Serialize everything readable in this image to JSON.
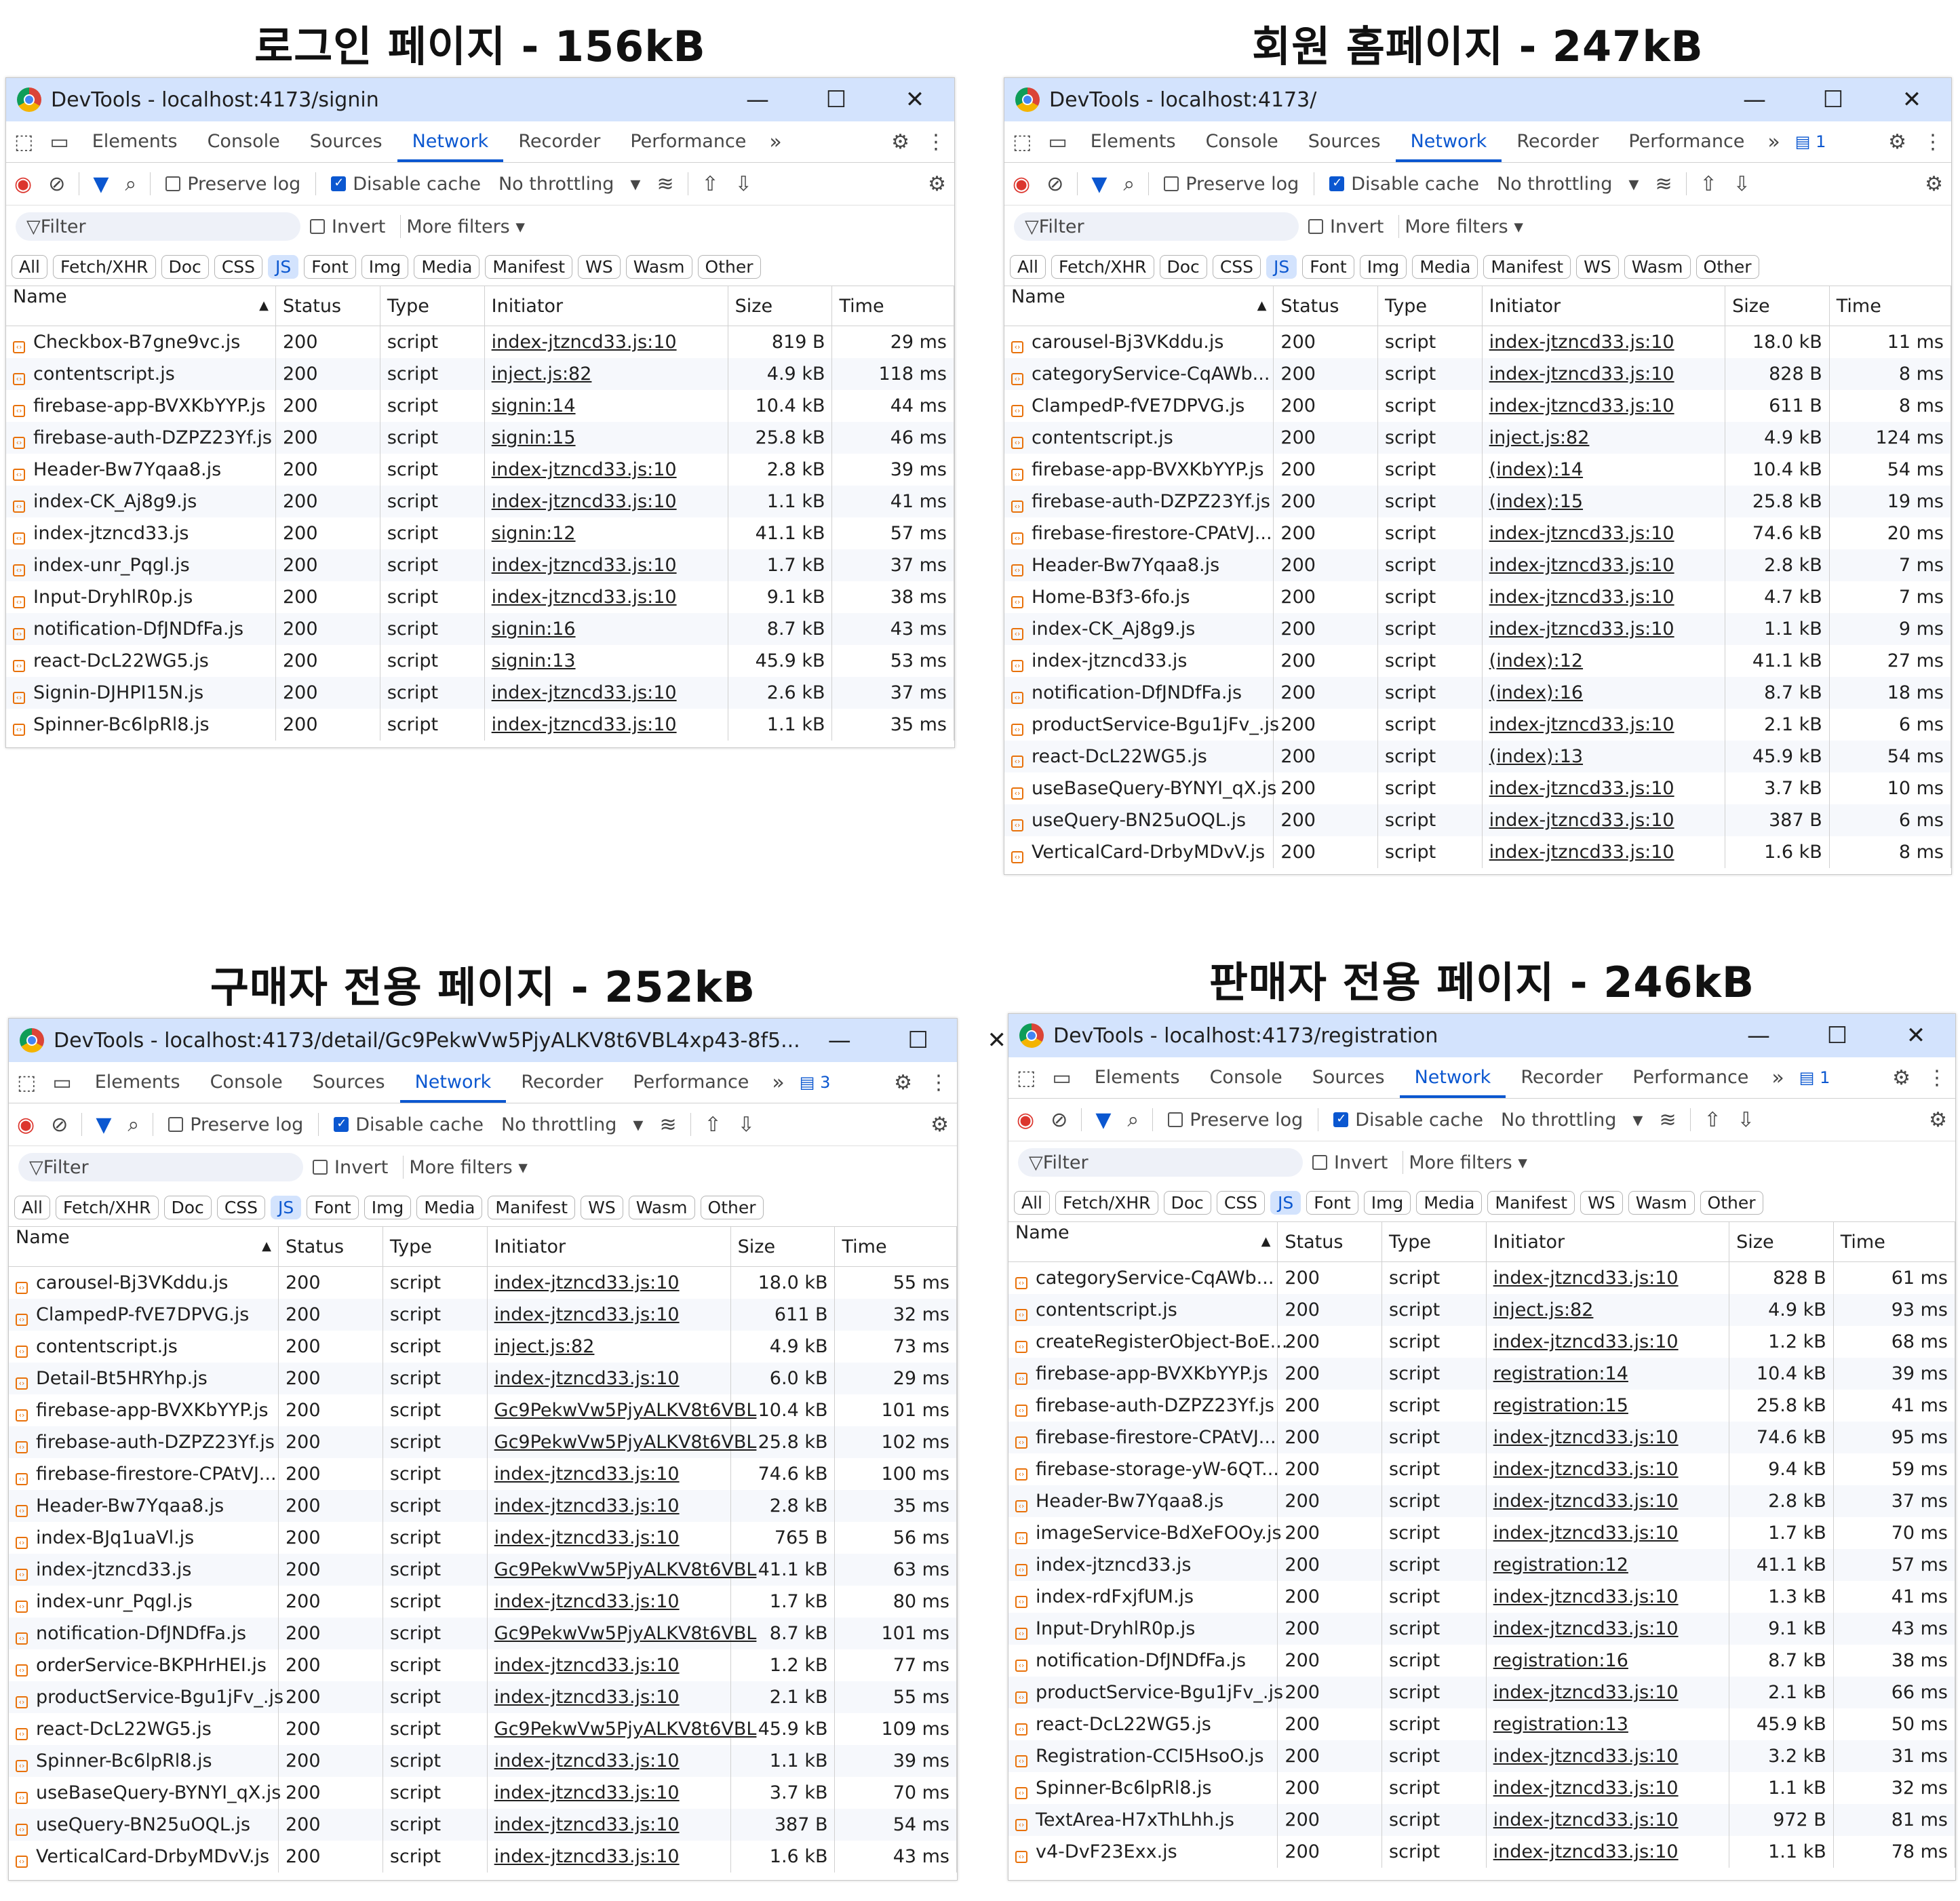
{
  "panels": [
    {
      "heading": "로그인 페이지 - 156kB",
      "window_title": "DevTools - localhost:4173/signin",
      "tabs": [
        "Elements",
        "Console",
        "Sources",
        "Network",
        "Recorder",
        "Performance"
      ],
      "active_tab": "Network",
      "badge": "",
      "toolbar": {
        "preserve_log": "Preserve log",
        "disable_cache": "Disable cache",
        "throttling": "No throttling"
      },
      "filter": {
        "placeholder": "Filter",
        "invert": "Invert",
        "more_filters": "More filters"
      },
      "chips": [
        "All",
        "Fetch/XHR",
        "Doc",
        "CSS",
        "JS",
        "Font",
        "Img",
        "Media",
        "Manifest",
        "WS",
        "Wasm",
        "Other"
      ],
      "active_chip": "JS",
      "columns": [
        "Name",
        "Status",
        "Type",
        "Initiator",
        "Size",
        "Time"
      ],
      "rows": [
        [
          "Checkbox-B7gne9vc.js",
          "200",
          "script",
          "index-jtzncd33.js:10",
          "819 B",
          "29 ms"
        ],
        [
          "contentscript.js",
          "200",
          "script",
          "inject.js:82",
          "4.9 kB",
          "118 ms"
        ],
        [
          "firebase-app-BVXKbYYP.js",
          "200",
          "script",
          "signin:14",
          "10.4 kB",
          "44 ms"
        ],
        [
          "firebase-auth-DZPZ23Yf.js",
          "200",
          "script",
          "signin:15",
          "25.8 kB",
          "46 ms"
        ],
        [
          "Header-Bw7Yqaa8.js",
          "200",
          "script",
          "index-jtzncd33.js:10",
          "2.8 kB",
          "39 ms"
        ],
        [
          "index-CK_Aj8g9.js",
          "200",
          "script",
          "index-jtzncd33.js:10",
          "1.1 kB",
          "41 ms"
        ],
        [
          "index-jtzncd33.js",
          "200",
          "script",
          "signin:12",
          "41.1 kB",
          "57 ms"
        ],
        [
          "index-unr_Pqgl.js",
          "200",
          "script",
          "index-jtzncd33.js:10",
          "1.7 kB",
          "37 ms"
        ],
        [
          "Input-DryhlR0p.js",
          "200",
          "script",
          "index-jtzncd33.js:10",
          "9.1 kB",
          "38 ms"
        ],
        [
          "notification-DfJNDfFa.js",
          "200",
          "script",
          "signin:16",
          "8.7 kB",
          "43 ms"
        ],
        [
          "react-DcL22WG5.js",
          "200",
          "script",
          "signin:13",
          "45.9 kB",
          "53 ms"
        ],
        [
          "Signin-DJHPI15N.js",
          "200",
          "script",
          "index-jtzncd33.js:10",
          "2.6 kB",
          "37 ms"
        ],
        [
          "Spinner-Bc6lpRl8.js",
          "200",
          "script",
          "index-jtzncd33.js:10",
          "1.1 kB",
          "35 ms"
        ]
      ]
    },
    {
      "heading": "회원 홈페이지 - 247kB",
      "window_title": "DevTools - localhost:4173/",
      "tabs": [
        "Elements",
        "Console",
        "Sources",
        "Network",
        "Recorder",
        "Performance"
      ],
      "active_tab": "Network",
      "badge": "1",
      "toolbar": {
        "preserve_log": "Preserve log",
        "disable_cache": "Disable cache",
        "throttling": "No throttling"
      },
      "filter": {
        "placeholder": "Filter",
        "invert": "Invert",
        "more_filters": "More filters"
      },
      "chips": [
        "All",
        "Fetch/XHR",
        "Doc",
        "CSS",
        "JS",
        "Font",
        "Img",
        "Media",
        "Manifest",
        "WS",
        "Wasm",
        "Other"
      ],
      "active_chip": "JS",
      "columns": [
        "Name",
        "Status",
        "Type",
        "Initiator",
        "Size",
        "Time"
      ],
      "rows": [
        [
          "carousel-Bj3VKddu.js",
          "200",
          "script",
          "index-jtzncd33.js:10",
          "18.0 kB",
          "11 ms"
        ],
        [
          "categoryService-CqAWb...",
          "200",
          "script",
          "index-jtzncd33.js:10",
          "828 B",
          "8 ms"
        ],
        [
          "ClampedP-fVE7DPVG.js",
          "200",
          "script",
          "index-jtzncd33.js:10",
          "611 B",
          "8 ms"
        ],
        [
          "contentscript.js",
          "200",
          "script",
          "inject.js:82",
          "4.9 kB",
          "124 ms"
        ],
        [
          "firebase-app-BVXKbYYP.js",
          "200",
          "script",
          "(index):14",
          "10.4 kB",
          "54 ms"
        ],
        [
          "firebase-auth-DZPZ23Yf.js",
          "200",
          "script",
          "(index):15",
          "25.8 kB",
          "19 ms"
        ],
        [
          "firebase-firestore-CPAtVJ...",
          "200",
          "script",
          "index-jtzncd33.js:10",
          "74.6 kB",
          "20 ms"
        ],
        [
          "Header-Bw7Yqaa8.js",
          "200",
          "script",
          "index-jtzncd33.js:10",
          "2.8 kB",
          "7 ms"
        ],
        [
          "Home-B3f3-6fo.js",
          "200",
          "script",
          "index-jtzncd33.js:10",
          "4.7 kB",
          "7 ms"
        ],
        [
          "index-CK_Aj8g9.js",
          "200",
          "script",
          "index-jtzncd33.js:10",
          "1.1 kB",
          "9 ms"
        ],
        [
          "index-jtzncd33.js",
          "200",
          "script",
          "(index):12",
          "41.1 kB",
          "27 ms"
        ],
        [
          "notification-DfJNDfFa.js",
          "200",
          "script",
          "(index):16",
          "8.7 kB",
          "18 ms"
        ],
        [
          "productService-Bgu1jFv_.js",
          "200",
          "script",
          "index-jtzncd33.js:10",
          "2.1 kB",
          "6 ms"
        ],
        [
          "react-DcL22WG5.js",
          "200",
          "script",
          "(index):13",
          "45.9 kB",
          "54 ms"
        ],
        [
          "useBaseQuery-BYNYI_qX.js",
          "200",
          "script",
          "index-jtzncd33.js:10",
          "3.7 kB",
          "10 ms"
        ],
        [
          "useQuery-BN25uOQL.js",
          "200",
          "script",
          "index-jtzncd33.js:10",
          "387 B",
          "6 ms"
        ],
        [
          "VerticalCard-DrbyMDvV.js",
          "200",
          "script",
          "index-jtzncd33.js:10",
          "1.6 kB",
          "8 ms"
        ]
      ]
    },
    {
      "heading": "구매자 전용 페이지 - 252kB",
      "window_title": "DevTools - localhost:4173/detail/Gc9PekwVw5PjyALKV8t6VBL4xp43-8f5...",
      "tabs": [
        "Elements",
        "Console",
        "Sources",
        "Network",
        "Recorder",
        "Performance"
      ],
      "active_tab": "Network",
      "badge": "3",
      "toolbar": {
        "preserve_log": "Preserve log",
        "disable_cache": "Disable cache",
        "throttling": "No throttling"
      },
      "filter": {
        "placeholder": "Filter",
        "invert": "Invert",
        "more_filters": "More filters"
      },
      "chips": [
        "All",
        "Fetch/XHR",
        "Doc",
        "CSS",
        "JS",
        "Font",
        "Img",
        "Media",
        "Manifest",
        "WS",
        "Wasm",
        "Other"
      ],
      "active_chip": "JS",
      "columns": [
        "Name",
        "Status",
        "Type",
        "Initiator",
        "Size",
        "Time"
      ],
      "rows": [
        [
          "carousel-Bj3VKddu.js",
          "200",
          "script",
          "index-jtzncd33.js:10",
          "18.0 kB",
          "55 ms"
        ],
        [
          "ClampedP-fVE7DPVG.js",
          "200",
          "script",
          "index-jtzncd33.js:10",
          "611 B",
          "32 ms"
        ],
        [
          "contentscript.js",
          "200",
          "script",
          "inject.js:82",
          "4.9 kB",
          "73 ms"
        ],
        [
          "Detail-Bt5HRYhp.js",
          "200",
          "script",
          "index-jtzncd33.js:10",
          "6.0 kB",
          "29 ms"
        ],
        [
          "firebase-app-BVXKbYYP.js",
          "200",
          "script",
          "Gc9PekwVw5PjyALKV8t6VBL",
          "10.4 kB",
          "101 ms"
        ],
        [
          "firebase-auth-DZPZ23Yf.js",
          "200",
          "script",
          "Gc9PekwVw5PjyALKV8t6VBL",
          "25.8 kB",
          "102 ms"
        ],
        [
          "firebase-firestore-CPAtVJ...",
          "200",
          "script",
          "index-jtzncd33.js:10",
          "74.6 kB",
          "100 ms"
        ],
        [
          "Header-Bw7Yqaa8.js",
          "200",
          "script",
          "index-jtzncd33.js:10",
          "2.8 kB",
          "35 ms"
        ],
        [
          "index-BJq1uaVl.js",
          "200",
          "script",
          "index-jtzncd33.js:10",
          "765 B",
          "56 ms"
        ],
        [
          "index-jtzncd33.js",
          "200",
          "script",
          "Gc9PekwVw5PjyALKV8t6VBL",
          "41.1 kB",
          "63 ms"
        ],
        [
          "index-unr_Pqgl.js",
          "200",
          "script",
          "index-jtzncd33.js:10",
          "1.7 kB",
          "80 ms"
        ],
        [
          "notification-DfJNDfFa.js",
          "200",
          "script",
          "Gc9PekwVw5PjyALKV8t6VBL",
          "8.7 kB",
          "101 ms"
        ],
        [
          "orderService-BKPHrHEI.js",
          "200",
          "script",
          "index-jtzncd33.js:10",
          "1.2 kB",
          "77 ms"
        ],
        [
          "productService-Bgu1jFv_.js",
          "200",
          "script",
          "index-jtzncd33.js:10",
          "2.1 kB",
          "55 ms"
        ],
        [
          "react-DcL22WG5.js",
          "200",
          "script",
          "Gc9PekwVw5PjyALKV8t6VBL",
          "45.9 kB",
          "109 ms"
        ],
        [
          "Spinner-Bc6lpRl8.js",
          "200",
          "script",
          "index-jtzncd33.js:10",
          "1.1 kB",
          "39 ms"
        ],
        [
          "useBaseQuery-BYNYI_qX.js",
          "200",
          "script",
          "index-jtzncd33.js:10",
          "3.7 kB",
          "70 ms"
        ],
        [
          "useQuery-BN25uOQL.js",
          "200",
          "script",
          "index-jtzncd33.js:10",
          "387 B",
          "54 ms"
        ],
        [
          "VerticalCard-DrbyMDvV.js",
          "200",
          "script",
          "index-jtzncd33.js:10",
          "1.6 kB",
          "43 ms"
        ]
      ]
    },
    {
      "heading": "판매자 전용 페이지 - 246kB",
      "window_title": "DevTools - localhost:4173/registration",
      "tabs": [
        "Elements",
        "Console",
        "Sources",
        "Network",
        "Recorder",
        "Performance"
      ],
      "active_tab": "Network",
      "badge": "1",
      "toolbar": {
        "preserve_log": "Preserve log",
        "disable_cache": "Disable cache",
        "throttling": "No throttling"
      },
      "filter": {
        "placeholder": "Filter",
        "invert": "Invert",
        "more_filters": "More filters"
      },
      "chips": [
        "All",
        "Fetch/XHR",
        "Doc",
        "CSS",
        "JS",
        "Font",
        "Img",
        "Media",
        "Manifest",
        "WS",
        "Wasm",
        "Other"
      ],
      "active_chip": "JS",
      "columns": [
        "Name",
        "Status",
        "Type",
        "Initiator",
        "Size",
        "Time"
      ],
      "rows": [
        [
          "categoryService-CqAWb...",
          "200",
          "script",
          "index-jtzncd33.js:10",
          "828 B",
          "61 ms"
        ],
        [
          "contentscript.js",
          "200",
          "script",
          "inject.js:82",
          "4.9 kB",
          "93 ms"
        ],
        [
          "createRegisterObject-BoE...",
          "200",
          "script",
          "index-jtzncd33.js:10",
          "1.2 kB",
          "68 ms"
        ],
        [
          "firebase-app-BVXKbYYP.js",
          "200",
          "script",
          "registration:14",
          "10.4 kB",
          "39 ms"
        ],
        [
          "firebase-auth-DZPZ23Yf.js",
          "200",
          "script",
          "registration:15",
          "25.8 kB",
          "41 ms"
        ],
        [
          "firebase-firestore-CPAtVJ...",
          "200",
          "script",
          "index-jtzncd33.js:10",
          "74.6 kB",
          "95 ms"
        ],
        [
          "firebase-storage-yW-6QT...",
          "200",
          "script",
          "index-jtzncd33.js:10",
          "9.4 kB",
          "59 ms"
        ],
        [
          "Header-Bw7Yqaa8.js",
          "200",
          "script",
          "index-jtzncd33.js:10",
          "2.8 kB",
          "37 ms"
        ],
        [
          "imageService-BdXeFOOy.js",
          "200",
          "script",
          "index-jtzncd33.js:10",
          "1.7 kB",
          "70 ms"
        ],
        [
          "index-jtzncd33.js",
          "200",
          "script",
          "registration:12",
          "41.1 kB",
          "57 ms"
        ],
        [
          "index-rdFxjfUM.js",
          "200",
          "script",
          "index-jtzncd33.js:10",
          "1.3 kB",
          "41 ms"
        ],
        [
          "Input-DryhlR0p.js",
          "200",
          "script",
          "index-jtzncd33.js:10",
          "9.1 kB",
          "43 ms"
        ],
        [
          "notification-DfJNDfFa.js",
          "200",
          "script",
          "registration:16",
          "8.7 kB",
          "38 ms"
        ],
        [
          "productService-Bgu1jFv_.js",
          "200",
          "script",
          "index-jtzncd33.js:10",
          "2.1 kB",
          "66 ms"
        ],
        [
          "react-DcL22WG5.js",
          "200",
          "script",
          "registration:13",
          "45.9 kB",
          "50 ms"
        ],
        [
          "Registration-CCI5HsoO.js",
          "200",
          "script",
          "index-jtzncd33.js:10",
          "3.2 kB",
          "31 ms"
        ],
        [
          "Spinner-Bc6lpRl8.js",
          "200",
          "script",
          "index-jtzncd33.js:10",
          "1.1 kB",
          "32 ms"
        ],
        [
          "TextArea-H7xThLhh.js",
          "200",
          "script",
          "index-jtzncd33.js:10",
          "972 B",
          "81 ms"
        ],
        [
          "v4-DvF23Exx.js",
          "200",
          "script",
          "index-jtzncd33.js:10",
          "1.1 kB",
          "78 ms"
        ]
      ]
    }
  ]
}
